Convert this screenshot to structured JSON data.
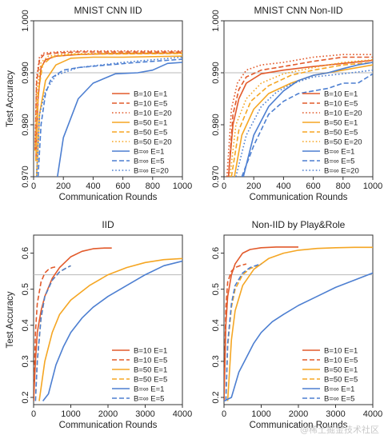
{
  "watermark": "@稀土掘金技术社区",
  "chart_data": [
    {
      "type": "line",
      "title": "MNIST CNN IID",
      "xlabel": "Communication Rounds",
      "ylabel": "Test Accuracy",
      "xlim": [
        0,
        1000
      ],
      "ylim": [
        0.97,
        1.0
      ],
      "xticks": [
        0,
        200,
        400,
        600,
        800,
        1000
      ],
      "yticks": [
        0.97,
        0.98,
        0.99,
        1.0
      ],
      "ytick_labels": [
        "0.970",
        "0.980",
        "0.990",
        "1.000"
      ],
      "reference_line": 0.99,
      "legend_position": "lower-right",
      "series": [
        {
          "name": "B=10  E=1",
          "color": "#e25a2b",
          "dash": "solid",
          "x": [
            15,
            30,
            50,
            80,
            150,
            300,
            500,
            1000
          ],
          "y": [
            0.973,
            0.985,
            0.991,
            0.9925,
            0.9932,
            0.9935,
            0.9937,
            0.9938
          ]
        },
        {
          "name": "B=10  E=5",
          "color": "#e25a2b",
          "dash": "dash",
          "x": [
            10,
            20,
            40,
            70,
            150,
            300,
            600,
            1000
          ],
          "y": [
            0.975,
            0.988,
            0.9925,
            0.9935,
            0.9938,
            0.994,
            0.994,
            0.994
          ]
        },
        {
          "name": "B=10  E=20",
          "color": "#e25a2b",
          "dash": "dot",
          "x": [
            10,
            20,
            40,
            70,
            150,
            300,
            600,
            1000
          ],
          "y": [
            0.976,
            0.989,
            0.993,
            0.9938,
            0.994,
            0.9942,
            0.9942,
            0.9942
          ]
        },
        {
          "name": "B=50  E=1",
          "color": "#f5a623",
          "dash": "solid",
          "x": [
            20,
            40,
            80,
            150,
            250,
            400,
            600,
            1000
          ],
          "y": [
            0.97,
            0.982,
            0.9885,
            0.9915,
            0.9928,
            0.993,
            0.993,
            0.9932
          ]
        },
        {
          "name": "B=50  E=5",
          "color": "#f5a623",
          "dash": "dash",
          "x": [
            15,
            30,
            60,
            120,
            250,
            500,
            1000
          ],
          "y": [
            0.973,
            0.986,
            0.9915,
            0.993,
            0.9935,
            0.9936,
            0.9937
          ]
        },
        {
          "name": "B=50  E=20",
          "color": "#f5a623",
          "dash": "dot",
          "x": [
            10,
            25,
            50,
            100,
            200,
            500,
            1000
          ],
          "y": [
            0.975,
            0.987,
            0.992,
            0.9932,
            0.9936,
            0.9938,
            0.9938
          ]
        },
        {
          "name": "B=∞  E=1",
          "color": "#4d7fd1",
          "dash": "solid",
          "x": [
            160,
            200,
            300,
            400,
            550,
            700,
            800,
            900,
            1000
          ],
          "y": [
            0.97,
            0.9775,
            0.985,
            0.988,
            0.9898,
            0.99,
            0.9905,
            0.9918,
            0.992
          ]
        },
        {
          "name": "B=∞  E=5",
          "color": "#4d7fd1",
          "dash": "dash",
          "x": [
            30,
            50,
            80,
            120,
            200,
            300,
            500,
            700,
            1000
          ],
          "y": [
            0.97,
            0.98,
            0.986,
            0.989,
            0.9905,
            0.991,
            0.9915,
            0.992,
            0.9926
          ]
        },
        {
          "name": "B=∞  E=20",
          "color": "#4d7fd1",
          "dash": "dot",
          "x": [
            20,
            40,
            80,
            150,
            300,
            600,
            1000
          ],
          "y": [
            0.97,
            0.982,
            0.9865,
            0.9895,
            0.991,
            0.992,
            0.993
          ]
        }
      ]
    },
    {
      "type": "line",
      "title": "MNIST CNN Non-IID",
      "xlabel": "Communication Rounds",
      "ylabel": "",
      "xlim": [
        0,
        1000
      ],
      "ylim": [
        0.97,
        1.0
      ],
      "xticks": [
        0,
        200,
        400,
        600,
        800,
        1000
      ],
      "yticks": [
        0.97,
        0.98,
        0.99,
        1.0
      ],
      "ytick_labels": [
        "0.970",
        "0.980",
        "0.990",
        "1.000"
      ],
      "reference_line": 0.99,
      "legend_position": "lower-right",
      "series": [
        {
          "name": "B=10  E=1",
          "color": "#e25a2b",
          "dash": "solid",
          "x": [
            30,
            60,
            100,
            150,
            250,
            400,
            600,
            800,
            1000
          ],
          "y": [
            0.97,
            0.98,
            0.985,
            0.988,
            0.9898,
            0.9905,
            0.9912,
            0.9918,
            0.9924
          ]
        },
        {
          "name": "B=10  E=5",
          "color": "#e25a2b",
          "dash": "dash",
          "x": [
            30,
            60,
            100,
            150,
            250,
            400,
            600,
            800,
            1000
          ],
          "y": [
            0.97,
            0.982,
            0.9868,
            0.9892,
            0.9905,
            0.9912,
            0.9922,
            0.993,
            0.993
          ]
        },
        {
          "name": "B=10  E=20",
          "color": "#e25a2b",
          "dash": "dot",
          "x": [
            20,
            50,
            90,
            150,
            250,
            400,
            600,
            800,
            1000
          ],
          "y": [
            0.97,
            0.983,
            0.988,
            0.9905,
            0.9915,
            0.992,
            0.993,
            0.9935,
            0.9935
          ]
        },
        {
          "name": "B=50  E=1",
          "color": "#f5a623",
          "dash": "solid",
          "x": [
            70,
            120,
            200,
            300,
            450,
            600,
            800,
            1000
          ],
          "y": [
            0.97,
            0.978,
            0.983,
            0.986,
            0.988,
            0.9895,
            0.9905,
            0.9915
          ]
        },
        {
          "name": "B=50  E=5",
          "color": "#f5a623",
          "dash": "dash",
          "x": [
            50,
            100,
            180,
            300,
            450,
            600,
            800,
            1000
          ],
          "y": [
            0.97,
            0.979,
            0.9845,
            0.9875,
            0.9895,
            0.9905,
            0.9915,
            0.992
          ]
        },
        {
          "name": "B=50  E=20",
          "color": "#f5a623",
          "dash": "dot",
          "x": [
            40,
            80,
            150,
            250,
            400,
            600,
            800,
            1000
          ],
          "y": [
            0.97,
            0.98,
            0.985,
            0.988,
            0.9898,
            0.991,
            0.992,
            0.9925
          ]
        },
        {
          "name": "B=∞  E=1",
          "color": "#4d7fd1",
          "dash": "solid",
          "x": [
            130,
            200,
            300,
            400,
            500,
            600,
            700,
            800,
            900,
            1000
          ],
          "y": [
            0.97,
            0.978,
            0.9835,
            0.9865,
            0.9885,
            0.9895,
            0.99,
            0.9908,
            0.9915,
            0.992
          ]
        },
        {
          "name": "B=∞  E=5",
          "color": "#4d7fd1",
          "dash": "dash",
          "x": [
            120,
            200,
            300,
            400,
            500,
            600,
            700,
            800,
            900,
            1000
          ],
          "y": [
            0.97,
            0.976,
            0.982,
            0.9845,
            0.986,
            0.9865,
            0.987,
            0.988,
            0.988,
            0.9898
          ]
        },
        {
          "name": "B=∞  E=20",
          "color": "#4d7fd1",
          "dash": "dot",
          "x": [
            80,
            150,
            250,
            350,
            450,
            600,
            800,
            1000
          ],
          "y": [
            0.97,
            0.978,
            0.9835,
            0.9862,
            0.9878,
            0.9892,
            0.9898,
            0.9905
          ]
        }
      ]
    },
    {
      "type": "line",
      "title": "IID",
      "xlabel": "Communication Rounds",
      "ylabel": "Test Accuracy",
      "xlim": [
        0,
        4000
      ],
      "ylim": [
        0.18,
        0.65
      ],
      "xticks": [
        0,
        1000,
        2000,
        3000,
        4000
      ],
      "yticks": [
        0.2,
        0.3,
        0.4,
        0.5,
        0.6
      ],
      "ytick_labels": [
        "0.2",
        "0.3",
        "0.4",
        "0.5",
        "0.6"
      ],
      "reference_line": 0.54,
      "legend_position": "lower-right",
      "series": [
        {
          "name": "B=10  E=1",
          "color": "#e25a2b",
          "dash": "solid",
          "x": [
            0,
            50,
            100,
            200,
            300,
            500,
            700,
            1000,
            1300,
            1600,
            1900,
            2100
          ],
          "y": [
            0.19,
            0.3,
            0.38,
            0.44,
            0.48,
            0.53,
            0.56,
            0.59,
            0.605,
            0.612,
            0.614,
            0.614
          ]
        },
        {
          "name": "B=10  E=5",
          "color": "#e25a2b",
          "dash": "dash",
          "x": [
            0,
            50,
            100,
            200,
            300,
            400,
            500,
            600
          ],
          "y": [
            0.19,
            0.38,
            0.46,
            0.52,
            0.545,
            0.555,
            0.56,
            0.562
          ]
        },
        {
          "name": "B=50  E=1",
          "color": "#f5a623",
          "dash": "solid",
          "x": [
            150,
            300,
            500,
            700,
            1000,
            1500,
            2000,
            2500,
            3000,
            3500,
            4000
          ],
          "y": [
            0.19,
            0.3,
            0.38,
            0.43,
            0.47,
            0.51,
            0.54,
            0.56,
            0.574,
            0.582,
            0.585
          ]
        },
        {
          "name": "B=50  E=5",
          "color": "#f5a623",
          "dash": "dash",
          "x": [
            50,
            100,
            200,
            300,
            500,
            700,
            900,
            1000
          ],
          "y": [
            0.19,
            0.3,
            0.42,
            0.48,
            0.525,
            0.548,
            0.56,
            0.565
          ]
        },
        {
          "name": "B=∞  E=1",
          "color": "#4d7fd1",
          "dash": "solid",
          "x": [
            250,
            400,
            600,
            800,
            1000,
            1300,
            1600,
            2000,
            2500,
            3000,
            3500,
            4000
          ],
          "y": [
            0.19,
            0.21,
            0.29,
            0.34,
            0.38,
            0.42,
            0.45,
            0.48,
            0.51,
            0.54,
            0.565,
            0.578
          ]
        },
        {
          "name": "B=∞  E=5",
          "color": "#4d7fd1",
          "dash": "dash",
          "x": [
            50,
            100,
            200,
            300,
            500,
            700,
            900,
            1000
          ],
          "y": [
            0.19,
            0.3,
            0.42,
            0.48,
            0.525,
            0.548,
            0.56,
            0.565
          ]
        }
      ]
    },
    {
      "type": "line",
      "title": "Non-IID by Play&Role",
      "xlabel": "Communication Rounds",
      "ylabel": "",
      "xlim": [
        0,
        4000
      ],
      "ylim": [
        0.18,
        0.65
      ],
      "xticks": [
        0,
        1000,
        2000,
        3000,
        4000
      ],
      "yticks": [
        0.2,
        0.3,
        0.4,
        0.5,
        0.6
      ],
      "ytick_labels": [
        "0.2",
        "0.3",
        "0.4",
        "0.5",
        "0.6"
      ],
      "reference_line": 0.54,
      "legend_position": "lower-right",
      "series": [
        {
          "name": "B=10  E=1",
          "color": "#e25a2b",
          "dash": "solid",
          "x": [
            0,
            50,
            100,
            200,
            300,
            500,
            700,
            1000,
            1400,
            2000
          ],
          "y": [
            0.19,
            0.4,
            0.48,
            0.54,
            0.57,
            0.6,
            0.61,
            0.615,
            0.617,
            0.617
          ]
        },
        {
          "name": "B=10  E=5",
          "color": "#e25a2b",
          "dash": "dash",
          "x": [
            0,
            50,
            100,
            200,
            300,
            450,
            600
          ],
          "y": [
            0.19,
            0.45,
            0.52,
            0.55,
            0.56,
            0.566,
            0.57
          ]
        },
        {
          "name": "B=50  E=1",
          "color": "#f5a623",
          "dash": "solid",
          "x": [
            100,
            200,
            300,
            500,
            800,
            1200,
            1600,
            2000,
            2500,
            3000,
            3500,
            4000
          ],
          "y": [
            0.19,
            0.36,
            0.44,
            0.51,
            0.555,
            0.585,
            0.6,
            0.608,
            0.613,
            0.615,
            0.616,
            0.616
          ]
        },
        {
          "name": "B=50  E=5",
          "color": "#f5a623",
          "dash": "dash",
          "x": [
            50,
            100,
            200,
            300,
            500,
            700,
            900,
            1000
          ],
          "y": [
            0.19,
            0.34,
            0.45,
            0.5,
            0.54,
            0.557,
            0.565,
            0.568
          ]
        },
        {
          "name": "B=∞  E=1",
          "color": "#4d7fd1",
          "dash": "solid",
          "x": [
            0,
            200,
            400,
            600,
            800,
            1000,
            1300,
            1600,
            2000,
            2500,
            3000,
            3500,
            4000
          ],
          "y": [
            0.19,
            0.2,
            0.27,
            0.31,
            0.35,
            0.38,
            0.41,
            0.43,
            0.455,
            0.48,
            0.505,
            0.525,
            0.545
          ]
        },
        {
          "name": "B=∞  E=5",
          "color": "#4d7fd1",
          "dash": "dash",
          "x": [
            50,
            100,
            200,
            300,
            500,
            700,
            900,
            1000
          ],
          "y": [
            0.19,
            0.35,
            0.46,
            0.51,
            0.545,
            0.56,
            0.567,
            0.57
          ]
        }
      ]
    }
  ]
}
